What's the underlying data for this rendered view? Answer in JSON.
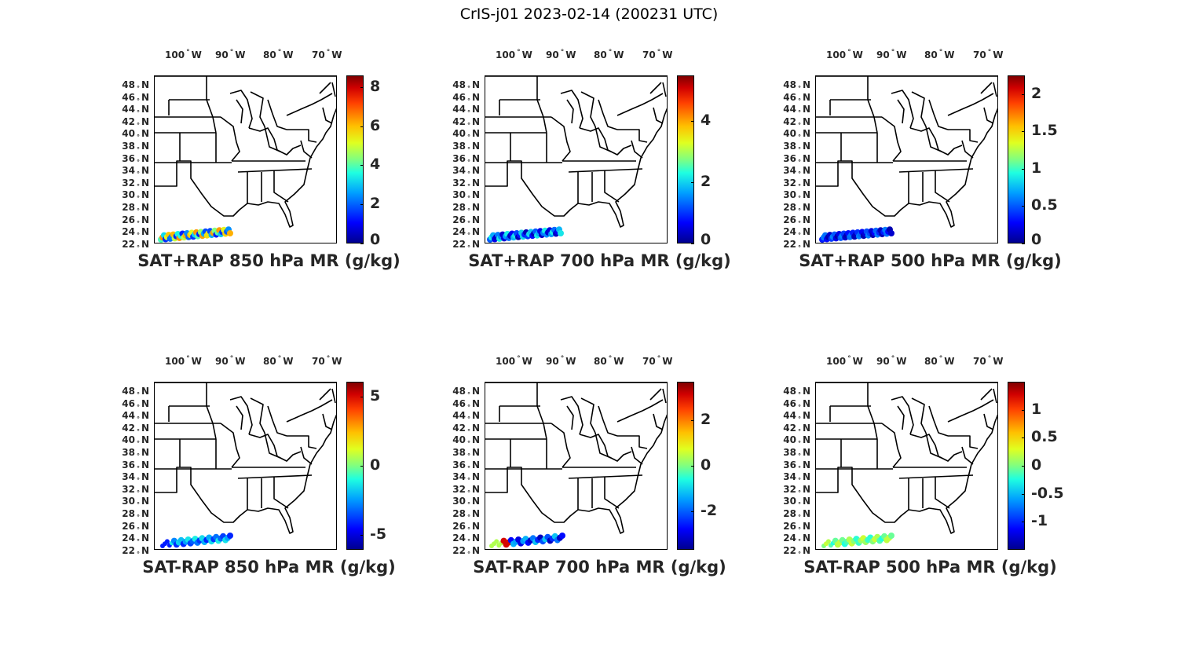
{
  "figure_title": "CrIS-j01 2023-02-14 (200231 UTC)",
  "lon_labels": [
    "100",
    "90",
    "80",
    "70"
  ],
  "lon_suffix": "W",
  "lat_labels": [
    "48",
    "46",
    "44",
    "42",
    "40",
    "38",
    "36",
    "34",
    "32",
    "30",
    "28",
    "26",
    "24",
    "22"
  ],
  "lat_suffix": "N",
  "colormap": "jet",
  "panels": [
    {
      "title": "SAT+RAP 850 hPa MR (g/kg)",
      "cbar_ticks": [
        "8",
        "6",
        "4",
        "2",
        "0"
      ],
      "cbar_range": [
        0,
        8.6
      ],
      "cbar_values": [
        8,
        6,
        4,
        2,
        0
      ]
    },
    {
      "title": "SAT+RAP 700 hPa MR (g/kg)",
      "cbar_ticks": [
        "4",
        "2",
        "0"
      ],
      "cbar_range": [
        0,
        5.5
      ],
      "cbar_values": [
        4,
        2,
        0
      ]
    },
    {
      "title": "SAT+RAP 500 hPa MR (g/kg)",
      "cbar_ticks": [
        "2",
        "1.5",
        "1",
        "0.5",
        "0"
      ],
      "cbar_range": [
        0,
        2.25
      ],
      "cbar_values": [
        2,
        1.5,
        1,
        0.5,
        0
      ]
    },
    {
      "title": "SAT-RAP 850 hPa MR (g/kg)",
      "cbar_ticks": [
        "5",
        "0",
        "-5"
      ],
      "cbar_range": [
        -6.1,
        6.1
      ],
      "cbar_values": [
        5,
        0,
        -5
      ]
    },
    {
      "title": "SAT-RAP 700 hPa MR (g/kg)",
      "cbar_ticks": [
        "2",
        "0",
        "-2"
      ],
      "cbar_range": [
        -3.7,
        3.7
      ],
      "cbar_values": [
        2,
        0,
        -2
      ]
    },
    {
      "title": "SAT-RAP 500 hPa MR (g/kg)",
      "cbar_ticks": [
        "1",
        "0.5",
        "0",
        "-0.5",
        "-1"
      ],
      "cbar_range": [
        -1.5,
        1.5
      ],
      "cbar_values": [
        1,
        0.5,
        0,
        -0.5,
        -1
      ]
    }
  ]
}
